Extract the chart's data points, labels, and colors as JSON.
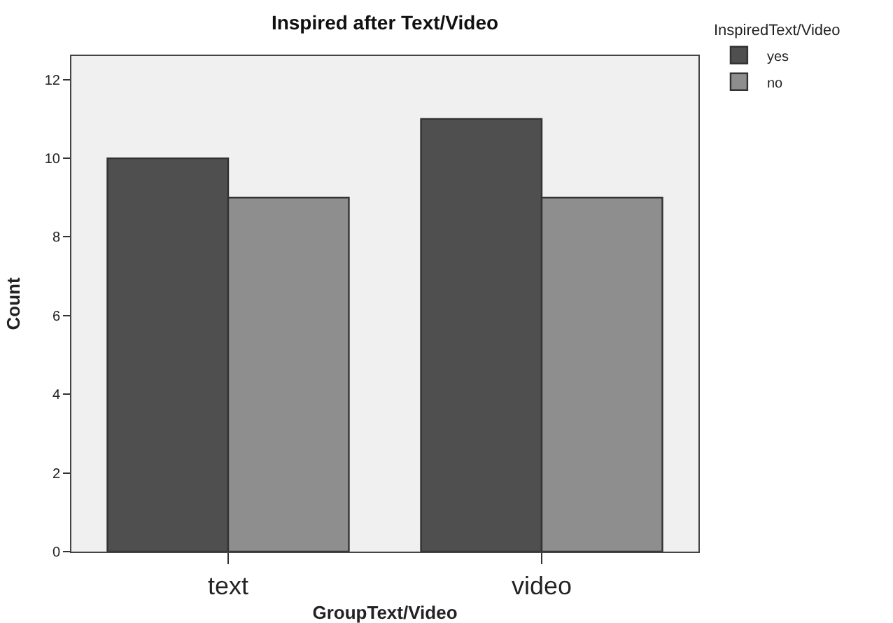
{
  "chart_data": {
    "type": "bar",
    "title": "Inspired after Text/Video",
    "xlabel": "GroupText/Video",
    "ylabel": "Count",
    "legend_title": "InspiredText/Video",
    "categories": [
      "text",
      "video"
    ],
    "series": [
      {
        "name": "yes",
        "color": "#4f4f4f",
        "values": [
          10,
          11
        ]
      },
      {
        "name": "no",
        "color": "#8e8e8e",
        "values": [
          9,
          9
        ]
      }
    ],
    "ylim": [
      0,
      12.6
    ],
    "yticks": [
      0,
      2,
      4,
      6,
      8,
      10,
      12
    ],
    "grid": false,
    "legend": "top right"
  }
}
